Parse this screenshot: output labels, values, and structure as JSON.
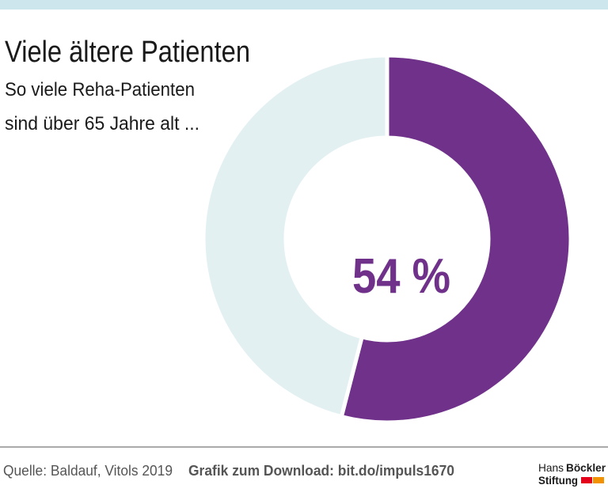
{
  "chart_data": {
    "type": "pie",
    "title": "Viele ältere Patienten",
    "subtitle": [
      "So viele Reha-Patienten",
      "sind über 65 Jahre alt ..."
    ],
    "categories": [
      null,
      null
    ],
    "values": [
      54,
      46
    ],
    "value_labels": [
      "54 %",
      null
    ],
    "colors": [
      "#6f318a",
      "#e3f0f2"
    ],
    "donut": true
  },
  "footer": {
    "source": "Quelle: Baldauf, Vitols 2019",
    "download": "Grafik zum Download: bit.do/impuls1670",
    "logo": [
      "Hans",
      "Böckler",
      "Stiftung"
    ]
  }
}
